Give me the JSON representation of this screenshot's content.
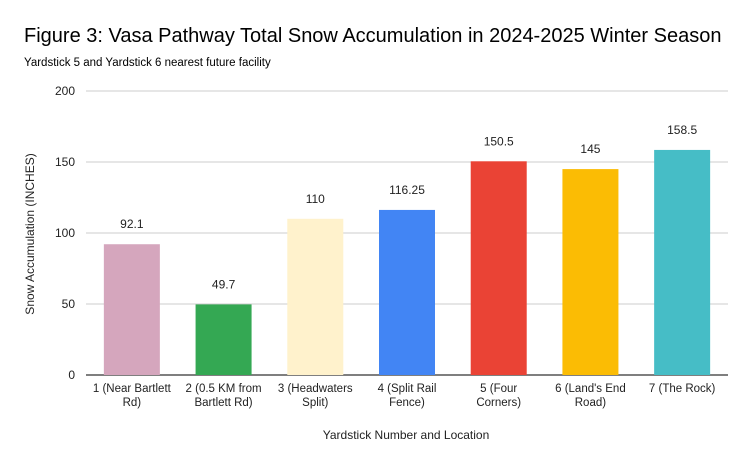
{
  "chart_data": {
    "type": "bar",
    "title": "Figure 3: Vasa Pathway Total Snow Accumulation in 2024-2025 Winter Season",
    "subtitle": "Yardstick 5 and Yardstick 6 nearest future facility",
    "xlabel": "Yardstick Number and Location",
    "ylabel": "Snow Accumulation (INCHES)",
    "ylim": [
      0,
      200
    ],
    "yticks": [
      0,
      50,
      100,
      150,
      200
    ],
    "grid": true,
    "legend": "none",
    "categories": [
      [
        "1 (Near Bartlett",
        "Rd)"
      ],
      [
        "2 (0.5 KM from",
        "Bartlett Rd)"
      ],
      [
        "3 (Headwaters",
        "Split)"
      ],
      [
        "4 (Split Rail",
        "Fence)"
      ],
      [
        "5 (Four",
        "Corners)"
      ],
      [
        "6 (Land's End",
        "Road)"
      ],
      [
        "7 (The Rock)"
      ]
    ],
    "values": [
      92.1,
      49.7,
      110,
      116.25,
      150.5,
      145,
      158.5
    ],
    "value_labels": [
      "92.1",
      "49.7",
      "110",
      "116.25",
      "150.5",
      "145",
      "158.5"
    ],
    "colors": [
      "#d5a6bd",
      "#34a853",
      "#fff2cc",
      "#4285f4",
      "#ea4335",
      "#fbbc04",
      "#46bdc6"
    ]
  }
}
